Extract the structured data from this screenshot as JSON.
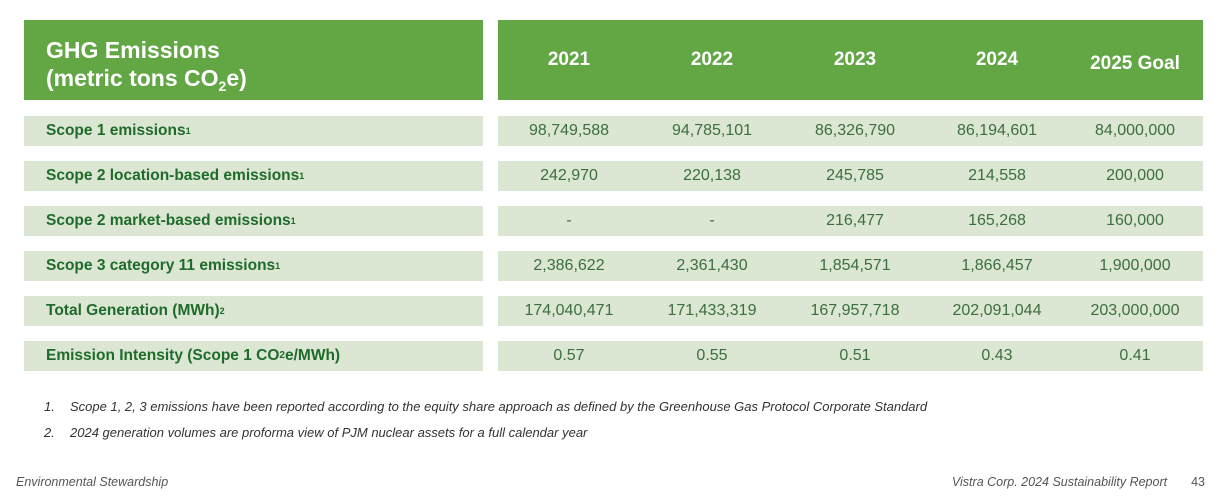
{
  "table": {
    "title_line1": "GHG Emissions",
    "title_line2_prefix": "(metric tons CO",
    "title_line2_sub": "2",
    "title_line2_suffix": "e)",
    "columns": [
      "2021",
      "2022",
      "2023",
      "2024",
      "2025 Goal"
    ],
    "rows": [
      {
        "label": "Scope 1 emissions",
        "note": "1",
        "values": [
          "98,749,588",
          "94,785,101",
          "86,326,790",
          "86,194,601",
          "84,000,000"
        ]
      },
      {
        "label": "Scope 2 location-based emissions",
        "note": "1",
        "values": [
          "242,970",
          "220,138",
          "245,785",
          "214,558",
          "200,000"
        ]
      },
      {
        "label": "Scope 2 market-based emissions",
        "note": "1",
        "values": [
          "-",
          "-",
          "216,477",
          "165,268",
          "160,000"
        ]
      },
      {
        "label": "Scope 3 category 11 emissions",
        "note": "1",
        "values": [
          "2,386,622",
          "2,361,430",
          "1,854,571",
          "1,866,457",
          "1,900,000"
        ]
      },
      {
        "label": "Total Generation (MWh)",
        "note": "2",
        "values": [
          "174,040,471",
          "171,433,319",
          "167,957,718",
          "202,091,044",
          "203,000,000"
        ]
      },
      {
        "label_prefix": "Emission Intensity (Scope 1 CO",
        "label_sub": "2",
        "label_suffix": "e/MWh)",
        "values": [
          "0.57",
          "0.55",
          "0.51",
          "0.43",
          "0.41"
        ]
      }
    ]
  },
  "footnotes": [
    {
      "num": "1.",
      "text": "Scope 1, 2, 3 emissions have been reported according to the equity share approach as defined by the Greenhouse Gas Protocol Corporate Standard"
    },
    {
      "num": "2.",
      "text": "2024 generation volumes are proforma view of PJM nuclear assets for a full calendar year"
    }
  ],
  "footer": {
    "section": "Environmental Stewardship",
    "report": "Vistra Corp. 2024 Sustainability Report",
    "page": "43"
  },
  "colors": {
    "header_green": "#62a744",
    "row_bg": "#dbe6d3",
    "label_green": "#1f6b2b"
  }
}
